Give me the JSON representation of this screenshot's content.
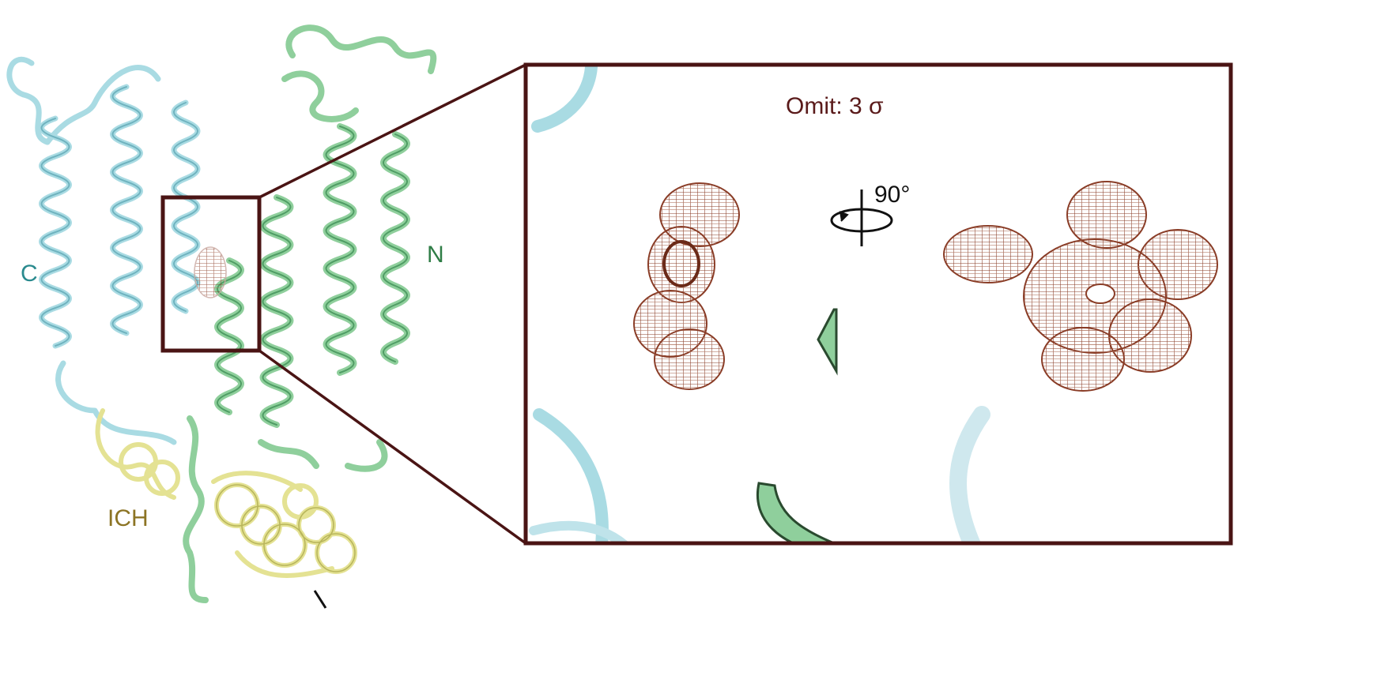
{
  "labels": {
    "c_terminus": "C",
    "n_terminus": "N",
    "intracellular_helix": "ICH",
    "omit_map": "Omit: 3 σ",
    "rotation": "90°"
  },
  "colors": {
    "cyan_domain": "#a9dbe3",
    "green_domain": "#8fcf9c",
    "yellow_domain": "#e4e293",
    "mesh": "#8a3d27",
    "box_outline": "#4a1414",
    "c_label": "#2a8a8e",
    "n_label": "#2f7d46",
    "ich_label": "#8c7424",
    "omit_label": "#5a1a1a"
  }
}
